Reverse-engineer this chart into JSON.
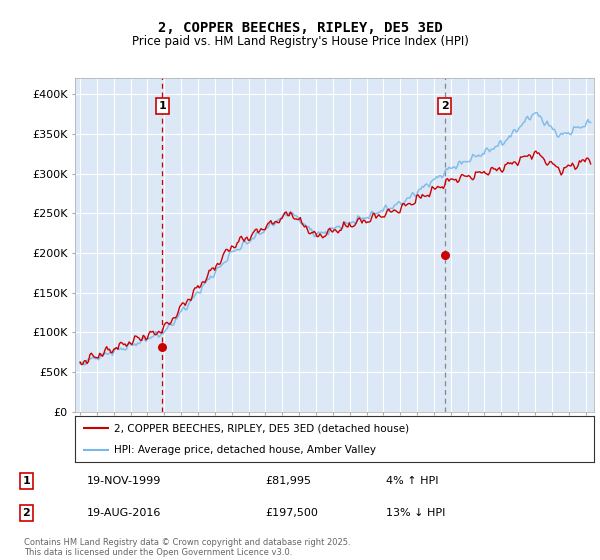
{
  "title": "2, COPPER BEECHES, RIPLEY, DE5 3ED",
  "subtitle": "Price paid vs. HM Land Registry's House Price Index (HPI)",
  "ylim": [
    0,
    420000
  ],
  "yticks": [
    0,
    50000,
    100000,
    150000,
    200000,
    250000,
    300000,
    350000,
    400000
  ],
  "ytick_labels": [
    "£0",
    "£50K",
    "£100K",
    "£150K",
    "£200K",
    "£250K",
    "£300K",
    "£350K",
    "£400K"
  ],
  "hpi_color": "#7ab8e8",
  "price_color": "#cc0000",
  "background_color": "#dce8f5",
  "sale1_date": 1999.88,
  "sale1_price": 81995,
  "sale1_label": "1",
  "sale2_date": 2016.63,
  "sale2_price": 197500,
  "sale2_label": "2",
  "legend_line1": "2, COPPER BEECHES, RIPLEY, DE5 3ED (detached house)",
  "legend_line2": "HPI: Average price, detached house, Amber Valley",
  "annotation1_date": "19-NOV-1999",
  "annotation1_price": "£81,995",
  "annotation1_hpi": "4% ↑ HPI",
  "annotation2_date": "19-AUG-2016",
  "annotation2_price": "£197,500",
  "annotation2_hpi": "13% ↓ HPI",
  "footer": "Contains HM Land Registry data © Crown copyright and database right 2025.\nThis data is licensed under the Open Government Licence v3.0.",
  "xlim_start": 1994.7,
  "xlim_end": 2025.5
}
